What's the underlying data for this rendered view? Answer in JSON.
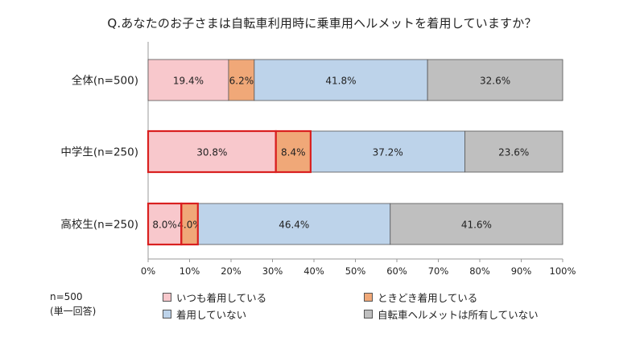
{
  "chart_data": {
    "type": "bar",
    "orientation": "horizontal",
    "stacked": true,
    "title": "Q.あなたのお子さまは自転車利用時に乗車用ヘルメットを着用していますか？",
    "categories": [
      "全体(n=500)",
      "中学生(n=250)",
      "高校生(n=250)"
    ],
    "series": [
      {
        "name": "いつも着用している",
        "color": "#f8c8cc",
        "values": [
          19.4,
          30.8,
          8.0
        ],
        "labels": [
          "19.4%",
          "30.8%",
          "8.0%"
        ]
      },
      {
        "name": "ときどき着用している",
        "color": "#f0a878",
        "values": [
          6.2,
          8.4,
          4.0
        ],
        "labels": [
          "6.2%",
          "8.4%",
          "4.0%"
        ]
      },
      {
        "name": "着用していない",
        "color": "#bdd3ea",
        "values": [
          41.8,
          37.2,
          46.4
        ],
        "labels": [
          "41.8%",
          "37.2%",
          "46.4%"
        ]
      },
      {
        "name": "自転車ヘルメットは所有していない",
        "color": "#bfbfbf",
        "values": [
          32.6,
          23.6,
          41.6
        ],
        "labels": [
          "32.6%",
          "23.6%",
          "41.6%"
        ]
      }
    ],
    "xlim": [
      0,
      100
    ],
    "x_ticks": [
      "0%",
      "10%",
      "20%",
      "30%",
      "40%",
      "50%",
      "60%",
      "70%",
      "80%",
      "90%",
      "100%"
    ],
    "grid": false,
    "legend_position": "bottom",
    "highlight": {
      "color": "#d92020",
      "outlines": [
        {
          "category": 1,
          "series": [
            0
          ]
        },
        {
          "category": 1,
          "series": [
            1
          ]
        },
        {
          "category": 2,
          "series": [
            0
          ]
        },
        {
          "category": 2,
          "series": [
            1
          ]
        }
      ]
    }
  },
  "note": {
    "line1": "n=500",
    "line2": "(単一回答)"
  }
}
